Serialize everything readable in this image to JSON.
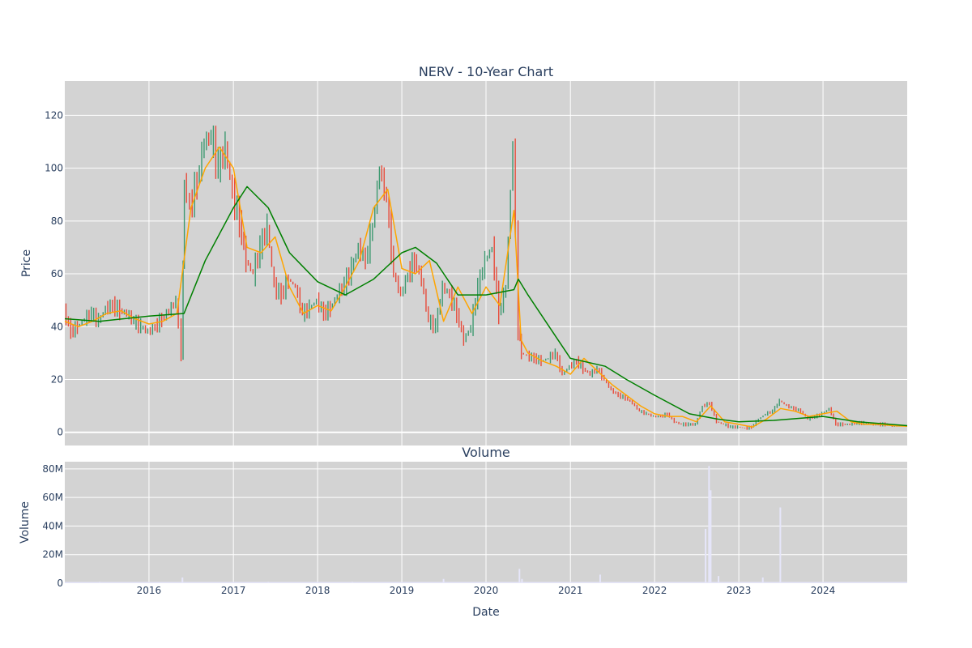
{
  "chart_data": [
    {
      "type": "candlestick",
      "title": "NERV - 10-Year Chart",
      "ylabel": "Price",
      "ylim": [
        -5,
        133
      ],
      "xlim": [
        "2015-01-01",
        "2024-12-31"
      ],
      "yticks": [
        0,
        20,
        40,
        60,
        80,
        100,
        120
      ],
      "grid": true,
      "colors": {
        "increasing": "#3d9970",
        "decreasing": "#e74c3c",
        "ma_short": "#ffa500",
        "ma_long": "#008000",
        "plot_bg": "#d3d3d3",
        "grid": "#ffffff"
      },
      "series": [
        {
          "role": "close",
          "x": [
            "2015-01-01",
            "2015-02-01",
            "2015-03-01",
            "2015-04-01",
            "2015-05-01",
            "2015-06-01",
            "2015-07-01",
            "2015-08-01",
            "2015-09-01",
            "2015-10-01",
            "2015-11-01",
            "2015-12-01",
            "2016-01-01",
            "2016-02-01",
            "2016-03-01",
            "2016-04-01",
            "2016-05-01",
            "2016-05-25",
            "2016-06-05",
            "2016-07-01",
            "2016-08-01",
            "2016-09-01",
            "2016-10-01",
            "2016-11-01",
            "2016-12-01",
            "2017-01-01",
            "2017-02-01",
            "2017-03-01",
            "2017-04-01",
            "2017-05-01",
            "2017-06-01",
            "2017-07-01",
            "2017-08-01",
            "2017-09-01",
            "2017-10-01",
            "2017-11-01",
            "2017-12-01",
            "2018-01-01",
            "2018-02-01",
            "2018-03-01",
            "2018-04-01",
            "2018-05-01",
            "2018-06-01",
            "2018-07-01",
            "2018-08-01",
            "2018-09-01",
            "2018-10-01",
            "2018-11-01",
            "2018-12-01",
            "2019-01-01",
            "2019-02-01",
            "2019-03-01",
            "2019-04-01",
            "2019-05-01",
            "2019-06-01",
            "2019-07-01",
            "2019-08-01",
            "2019-09-01",
            "2019-10-01",
            "2019-11-01",
            "2019-12-01",
            "2020-01-01",
            "2020-02-01",
            "2020-03-01",
            "2020-04-01",
            "2020-05-01",
            "2020-05-25",
            "2020-06-05",
            "2020-07-01",
            "2020-08-01",
            "2020-09-01",
            "2020-10-01",
            "2020-11-01",
            "2020-12-01",
            "2021-01-01",
            "2021-02-01",
            "2021-03-01",
            "2021-04-01",
            "2021-05-01",
            "2021-06-01",
            "2021-07-01",
            "2021-08-01",
            "2021-09-01",
            "2021-10-01",
            "2021-11-01",
            "2021-12-01",
            "2022-01-01",
            "2022-02-01",
            "2022-03-01",
            "2022-04-01",
            "2022-05-01",
            "2022-06-01",
            "2022-07-01",
            "2022-08-01",
            "2022-09-01",
            "2022-10-01",
            "2022-11-01",
            "2022-12-01",
            "2023-01-01",
            "2023-02-01",
            "2023-03-01",
            "2023-04-01",
            "2023-05-01",
            "2023-06-01",
            "2023-07-01",
            "2023-08-01",
            "2023-09-01",
            "2023-10-01",
            "2023-11-01",
            "2023-12-01",
            "2024-01-01",
            "2024-02-01",
            "2024-03-01",
            "2024-04-01",
            "2024-05-01",
            "2024-06-01",
            "2024-07-01",
            "2024-08-01",
            "2024-09-01",
            "2024-10-01",
            "2024-11-01",
            "2024-12-01"
          ],
          "values": [
            46,
            38,
            40,
            43,
            45,
            42,
            47,
            48,
            46,
            45,
            42,
            40,
            38,
            40,
            43,
            46,
            50,
            30,
            95,
            85,
            95,
            110,
            112,
            100,
            108,
            90,
            80,
            65,
            60,
            70,
            78,
            55,
            52,
            58,
            55,
            45,
            47,
            50,
            45,
            47,
            52,
            56,
            62,
            70,
            65,
            78,
            100,
            88,
            60,
            52,
            60,
            65,
            58,
            42,
            40,
            55,
            52,
            45,
            35,
            40,
            55,
            65,
            70,
            45,
            55,
            110,
            40,
            30,
            29,
            28,
            27,
            28,
            30,
            22,
            25,
            27,
            24,
            22,
            24,
            20,
            16,
            14,
            13,
            11,
            8,
            7,
            6,
            6,
            7,
            4,
            3,
            3,
            3,
            10,
            11,
            4,
            3,
            2,
            2,
            1.5,
            2,
            5,
            7,
            8,
            12,
            10,
            9,
            8,
            5,
            6,
            7,
            9,
            3,
            3,
            3,
            3.5,
            3.5,
            3,
            3,
            3,
            2.5,
            2.5
          ]
        },
        {
          "role": "ma_short",
          "x": [
            "2015-01-01",
            "2015-03-01",
            "2015-05-01",
            "2015-07-01",
            "2015-09-01",
            "2015-11-01",
            "2016-01-01",
            "2016-03-01",
            "2016-05-01",
            "2016-07-01",
            "2016-09-01",
            "2016-11-01",
            "2017-01-01",
            "2017-03-01",
            "2017-05-01",
            "2017-07-01",
            "2017-09-01",
            "2017-11-01",
            "2018-01-01",
            "2018-03-01",
            "2018-05-01",
            "2018-07-01",
            "2018-09-01",
            "2018-11-01",
            "2019-01-01",
            "2019-03-01",
            "2019-05-01",
            "2019-07-01",
            "2019-09-01",
            "2019-11-01",
            "2020-01-01",
            "2020-03-01",
            "2020-05-01",
            "2020-06-01",
            "2020-07-01",
            "2020-09-01",
            "2020-11-01",
            "2021-01-01",
            "2021-03-01",
            "2021-05-01",
            "2021-07-01",
            "2021-09-01",
            "2021-11-01",
            "2022-01-01",
            "2022-03-01",
            "2022-05-01",
            "2022-07-01",
            "2022-09-01",
            "2022-11-01",
            "2023-01-01",
            "2023-03-01",
            "2023-05-01",
            "2023-07-01",
            "2023-09-01",
            "2023-11-01",
            "2024-01-01",
            "2024-03-01",
            "2024-05-01",
            "2024-07-01",
            "2024-09-01",
            "2024-11-01",
            "2024-12-31"
          ],
          "values": [
            42,
            40,
            42,
            45,
            46,
            43,
            41,
            42,
            45,
            85,
            100,
            108,
            100,
            70,
            68,
            74,
            55,
            45,
            48,
            46,
            55,
            65,
            85,
            92,
            62,
            60,
            65,
            42,
            55,
            45,
            55,
            48,
            84,
            35,
            30,
            27,
            25,
            22,
            28,
            23,
            18,
            14,
            10,
            7,
            6,
            6,
            4,
            10,
            4,
            3,
            2,
            5,
            9,
            8,
            6,
            7,
            8,
            4,
            3,
            3,
            2.5,
            2.3
          ]
        },
        {
          "role": "ma_long",
          "x": [
            "2015-01-01",
            "2015-06-01",
            "2016-01-01",
            "2016-06-01",
            "2016-09-01",
            "2017-01-01",
            "2017-03-01",
            "2017-06-01",
            "2017-09-01",
            "2018-01-01",
            "2018-05-01",
            "2018-09-01",
            "2019-01-01",
            "2019-03-01",
            "2019-06-01",
            "2019-09-01",
            "2020-01-01",
            "2020-05-01",
            "2020-05-20",
            "2020-07-01",
            "2020-10-01",
            "2021-01-01",
            "2021-06-01",
            "2021-09-01",
            "2022-01-01",
            "2022-06-01",
            "2022-10-01",
            "2023-01-01",
            "2023-06-01",
            "2024-01-01",
            "2024-06-01",
            "2024-12-31"
          ],
          "values": [
            43,
            42,
            44,
            45,
            65,
            85,
            93,
            85,
            68,
            57,
            52,
            58,
            68,
            70,
            64,
            52,
            52,
            54,
            58,
            52,
            40,
            28,
            25,
            20,
            14,
            7,
            5,
            4,
            4.5,
            6,
            4,
            2.5
          ]
        }
      ]
    },
    {
      "type": "bar",
      "title": "Volume",
      "ylabel": "Volume",
      "xlabel": "Date",
      "ylim": [
        0,
        85000000
      ],
      "yticks": [
        0,
        20000000,
        40000000,
        60000000,
        80000000
      ],
      "ytick_labels": [
        "0",
        "20M",
        "40M",
        "60M",
        "80M"
      ],
      "xticks": [
        "2016-01-01",
        "2017-01-01",
        "2018-01-01",
        "2019-01-01",
        "2020-01-01",
        "2021-01-01",
        "2022-01-01",
        "2023-01-01",
        "2024-01-01"
      ],
      "xtick_labels": [
        "2016",
        "2017",
        "2018",
        "2019",
        "2020",
        "2021",
        "2022",
        "2023",
        "2024"
      ],
      "grid": true,
      "colors": {
        "bar": "#e6e6fa"
      },
      "series": [
        {
          "x": [
            "2015-06-01",
            "2016-05-25",
            "2017-06-01",
            "2018-06-01",
            "2019-07-01",
            "2020-05-25",
            "2020-06-05",
            "2021-05-10",
            "2022-08-10",
            "2022-08-25",
            "2022-09-01",
            "2022-10-05",
            "2023-04-15",
            "2023-06-30"
          ],
          "values": [
            1000000,
            4000000,
            1000000,
            1000000,
            3000000,
            10000000,
            3000000,
            6000000,
            38000000,
            82000000,
            65000000,
            5000000,
            4000000,
            53000000
          ]
        }
      ]
    }
  ]
}
